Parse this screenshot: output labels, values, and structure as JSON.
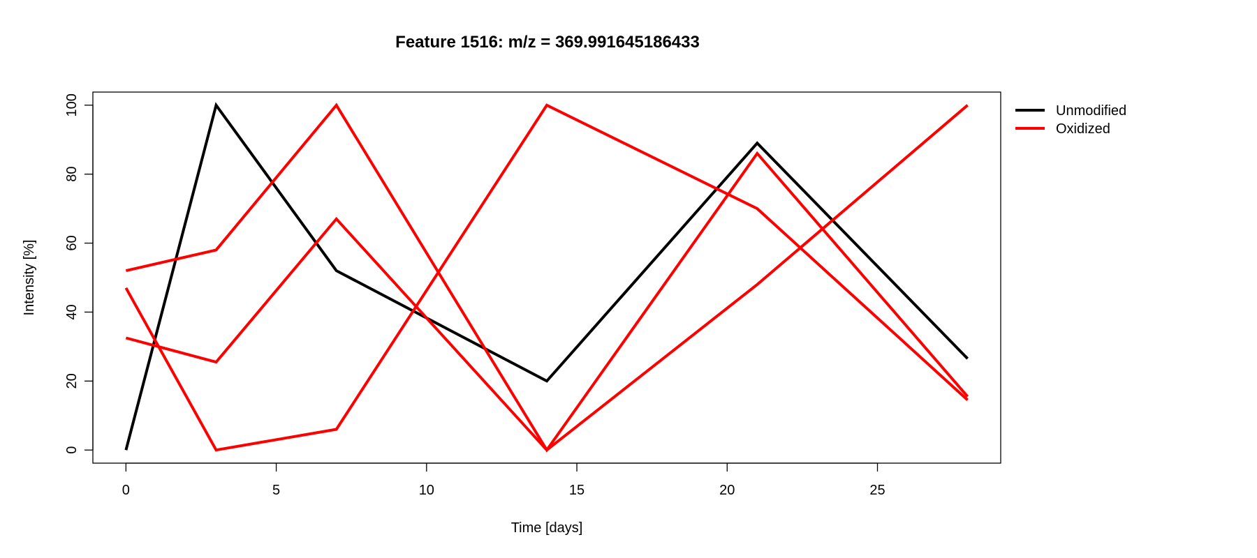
{
  "chart_data": {
    "type": "line",
    "title": "Feature 1516: m/z = 369.991645186433",
    "xlabel": "Time [days]",
    "ylabel": "Intensity [%]",
    "x": [
      0,
      3,
      7,
      14,
      21,
      28
    ],
    "xlim": [
      -1.1,
      29.1
    ],
    "ylim": [
      -3.8,
      103.8
    ],
    "xticks": [
      0,
      5,
      10,
      15,
      20,
      25
    ],
    "yticks": [
      0,
      20,
      40,
      60,
      80,
      100
    ],
    "grid": false,
    "legend_position": "right",
    "legend": [
      {
        "label": "Unmodified",
        "color": "#000000"
      },
      {
        "label": "Oxidized",
        "color": "#ff0000"
      }
    ],
    "series": [
      {
        "group": "Unmodified",
        "color": "#000000",
        "values": [
          0,
          100,
          52,
          20,
          89,
          26.5
        ]
      },
      {
        "group": "Oxidized",
        "color": "#ff0000",
        "values": [
          52,
          58,
          100,
          0,
          86,
          15.5
        ]
      },
      {
        "group": "Oxidized",
        "color": "#ff0000",
        "values": [
          47,
          0,
          6,
          100,
          70,
          14.5
        ]
      },
      {
        "group": "Oxidized",
        "color": "#ff0000",
        "values": [
          32.5,
          25.5,
          67,
          0,
          48,
          100
        ]
      }
    ]
  }
}
